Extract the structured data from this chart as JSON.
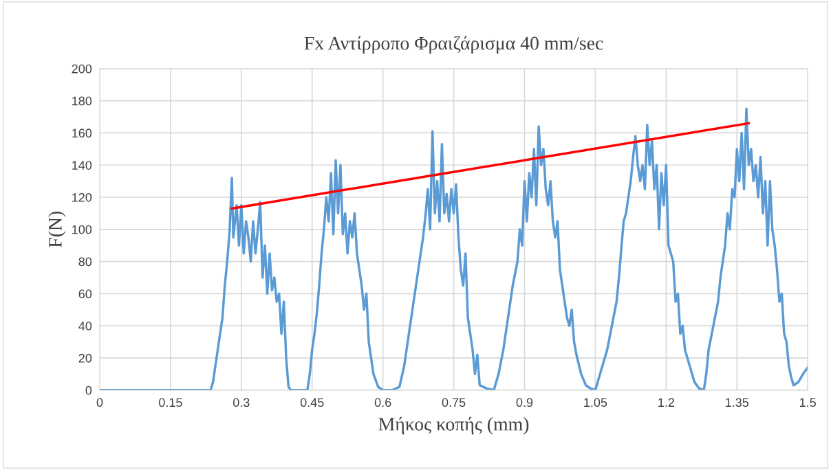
{
  "chart_data": {
    "type": "line",
    "title": "Fx Αντίρροπο Φραιζάρισμα 40 mm/sec",
    "xlabel": "Μήκος κοπής (mm)",
    "ylabel": "F(N)",
    "xlim": [
      0,
      1.5
    ],
    "xticks": [
      0,
      0.15,
      0.3,
      0.45,
      0.6,
      0.75,
      0.9,
      1.05,
      1.2,
      1.35,
      1.5
    ],
    "ylim": [
      0,
      200
    ],
    "yticks": [
      0,
      20,
      40,
      60,
      80,
      100,
      120,
      140,
      160,
      180,
      200
    ],
    "grid": true,
    "legend": false,
    "series": [
      {
        "color": "#5b9bd5",
        "x": [
          0,
          0.235,
          0.24,
          0.25,
          0.26,
          0.265,
          0.27,
          0.275,
          0.28,
          0.283,
          0.29,
          0.295,
          0.3,
          0.305,
          0.31,
          0.315,
          0.32,
          0.325,
          0.33,
          0.335,
          0.34,
          0.345,
          0.35,
          0.355,
          0.36,
          0.365,
          0.37,
          0.375,
          0.38,
          0.385,
          0.39,
          0.395,
          0.4,
          0.405,
          0.44,
          0.445,
          0.45,
          0.455,
          0.46,
          0.465,
          0.47,
          0.475,
          0.48,
          0.485,
          0.49,
          0.495,
          0.5,
          0.505,
          0.51,
          0.515,
          0.52,
          0.525,
          0.53,
          0.535,
          0.54,
          0.545,
          0.55,
          0.555,
          0.56,
          0.565,
          0.57,
          0.575,
          0.58,
          0.59,
          0.6,
          0.62,
          0.635,
          0.645,
          0.655,
          0.665,
          0.675,
          0.685,
          0.69,
          0.695,
          0.7,
          0.705,
          0.71,
          0.715,
          0.72,
          0.725,
          0.73,
          0.735,
          0.74,
          0.745,
          0.75,
          0.755,
          0.76,
          0.765,
          0.77,
          0.775,
          0.78,
          0.785,
          0.79,
          0.795,
          0.8,
          0.805,
          0.82,
          0.835,
          0.84,
          0.845,
          0.855,
          0.865,
          0.875,
          0.885,
          0.89,
          0.895,
          0.9,
          0.905,
          0.91,
          0.915,
          0.92,
          0.925,
          0.93,
          0.935,
          0.94,
          0.945,
          0.95,
          0.955,
          0.96,
          0.965,
          0.97,
          0.975,
          0.98,
          0.985,
          0.99,
          0.995,
          1.0,
          1.005,
          1.01,
          1.02,
          1.03,
          1.04,
          1.05,
          1.055,
          1.065,
          1.075,
          1.085,
          1.095,
          1.1,
          1.105,
          1.11,
          1.115,
          1.12,
          1.125,
          1.13,
          1.135,
          1.14,
          1.145,
          1.15,
          1.155,
          1.16,
          1.165,
          1.17,
          1.175,
          1.18,
          1.185,
          1.19,
          1.195,
          1.2,
          1.205,
          1.21,
          1.215,
          1.22,
          1.225,
          1.23,
          1.235,
          1.24,
          1.25,
          1.26,
          1.27,
          1.28,
          1.285,
          1.29,
          1.3,
          1.31,
          1.315,
          1.32,
          1.325,
          1.33,
          1.335,
          1.34,
          1.345,
          1.35,
          1.355,
          1.36,
          1.365,
          1.37,
          1.375,
          1.38,
          1.385,
          1.39,
          1.395,
          1.4,
          1.405,
          1.41,
          1.415,
          1.42,
          1.425,
          1.43,
          1.435,
          1.44,
          1.445,
          1.45,
          1.455,
          1.46,
          1.465,
          1.47,
          1.48,
          1.49,
          1.5
        ],
        "values": [
          0,
          0,
          5,
          25,
          45,
          65,
          80,
          98,
          132,
          95,
          115,
          90,
          115,
          85,
          105,
          95,
          80,
          105,
          85,
          100,
          117,
          70,
          90,
          60,
          85,
          62,
          70,
          55,
          60,
          35,
          55,
          20,
          2,
          0,
          0,
          10,
          25,
          35,
          48,
          65,
          85,
          100,
          120,
          105,
          135,
          97,
          143,
          110,
          140,
          97,
          110,
          85,
          105,
          95,
          110,
          85,
          75,
          65,
          50,
          60,
          30,
          20,
          10,
          2,
          0,
          0,
          2,
          15,
          35,
          55,
          75,
          95,
          108,
          125,
          100,
          161,
          110,
          130,
          105,
          153,
          110,
          122,
          105,
          125,
          110,
          128,
          95,
          75,
          65,
          85,
          45,
          35,
          25,
          10,
          22,
          3,
          1,
          0,
          5,
          10,
          25,
          45,
          65,
          80,
          100,
          90,
          130,
          105,
          135,
          120,
          150,
          115,
          164,
          140,
          150,
          125,
          115,
          130,
          105,
          95,
          105,
          75,
          65,
          55,
          45,
          40,
          50,
          30,
          22,
          10,
          3,
          1,
          0,
          5,
          15,
          25,
          40,
          55,
          70,
          88,
          105,
          110,
          120,
          130,
          145,
          158,
          140,
          130,
          140,
          125,
          165,
          140,
          155,
          125,
          140,
          100,
          135,
          115,
          140,
          90,
          85,
          80,
          55,
          60,
          35,
          40,
          25,
          15,
          5,
          1,
          0,
          10,
          25,
          40,
          55,
          70,
          80,
          90,
          110,
          100,
          125,
          120,
          150,
          130,
          160,
          125,
          175,
          140,
          150,
          130,
          140,
          120,
          145,
          110,
          130,
          90,
          130,
          100,
          90,
          75,
          55,
          60,
          35,
          30,
          15,
          8,
          3,
          5,
          10,
          14
        ]
      },
      {
        "color": "#ff0000",
        "x": [
          0.28,
          1.375
        ],
        "values": [
          113,
          166
        ]
      }
    ]
  }
}
